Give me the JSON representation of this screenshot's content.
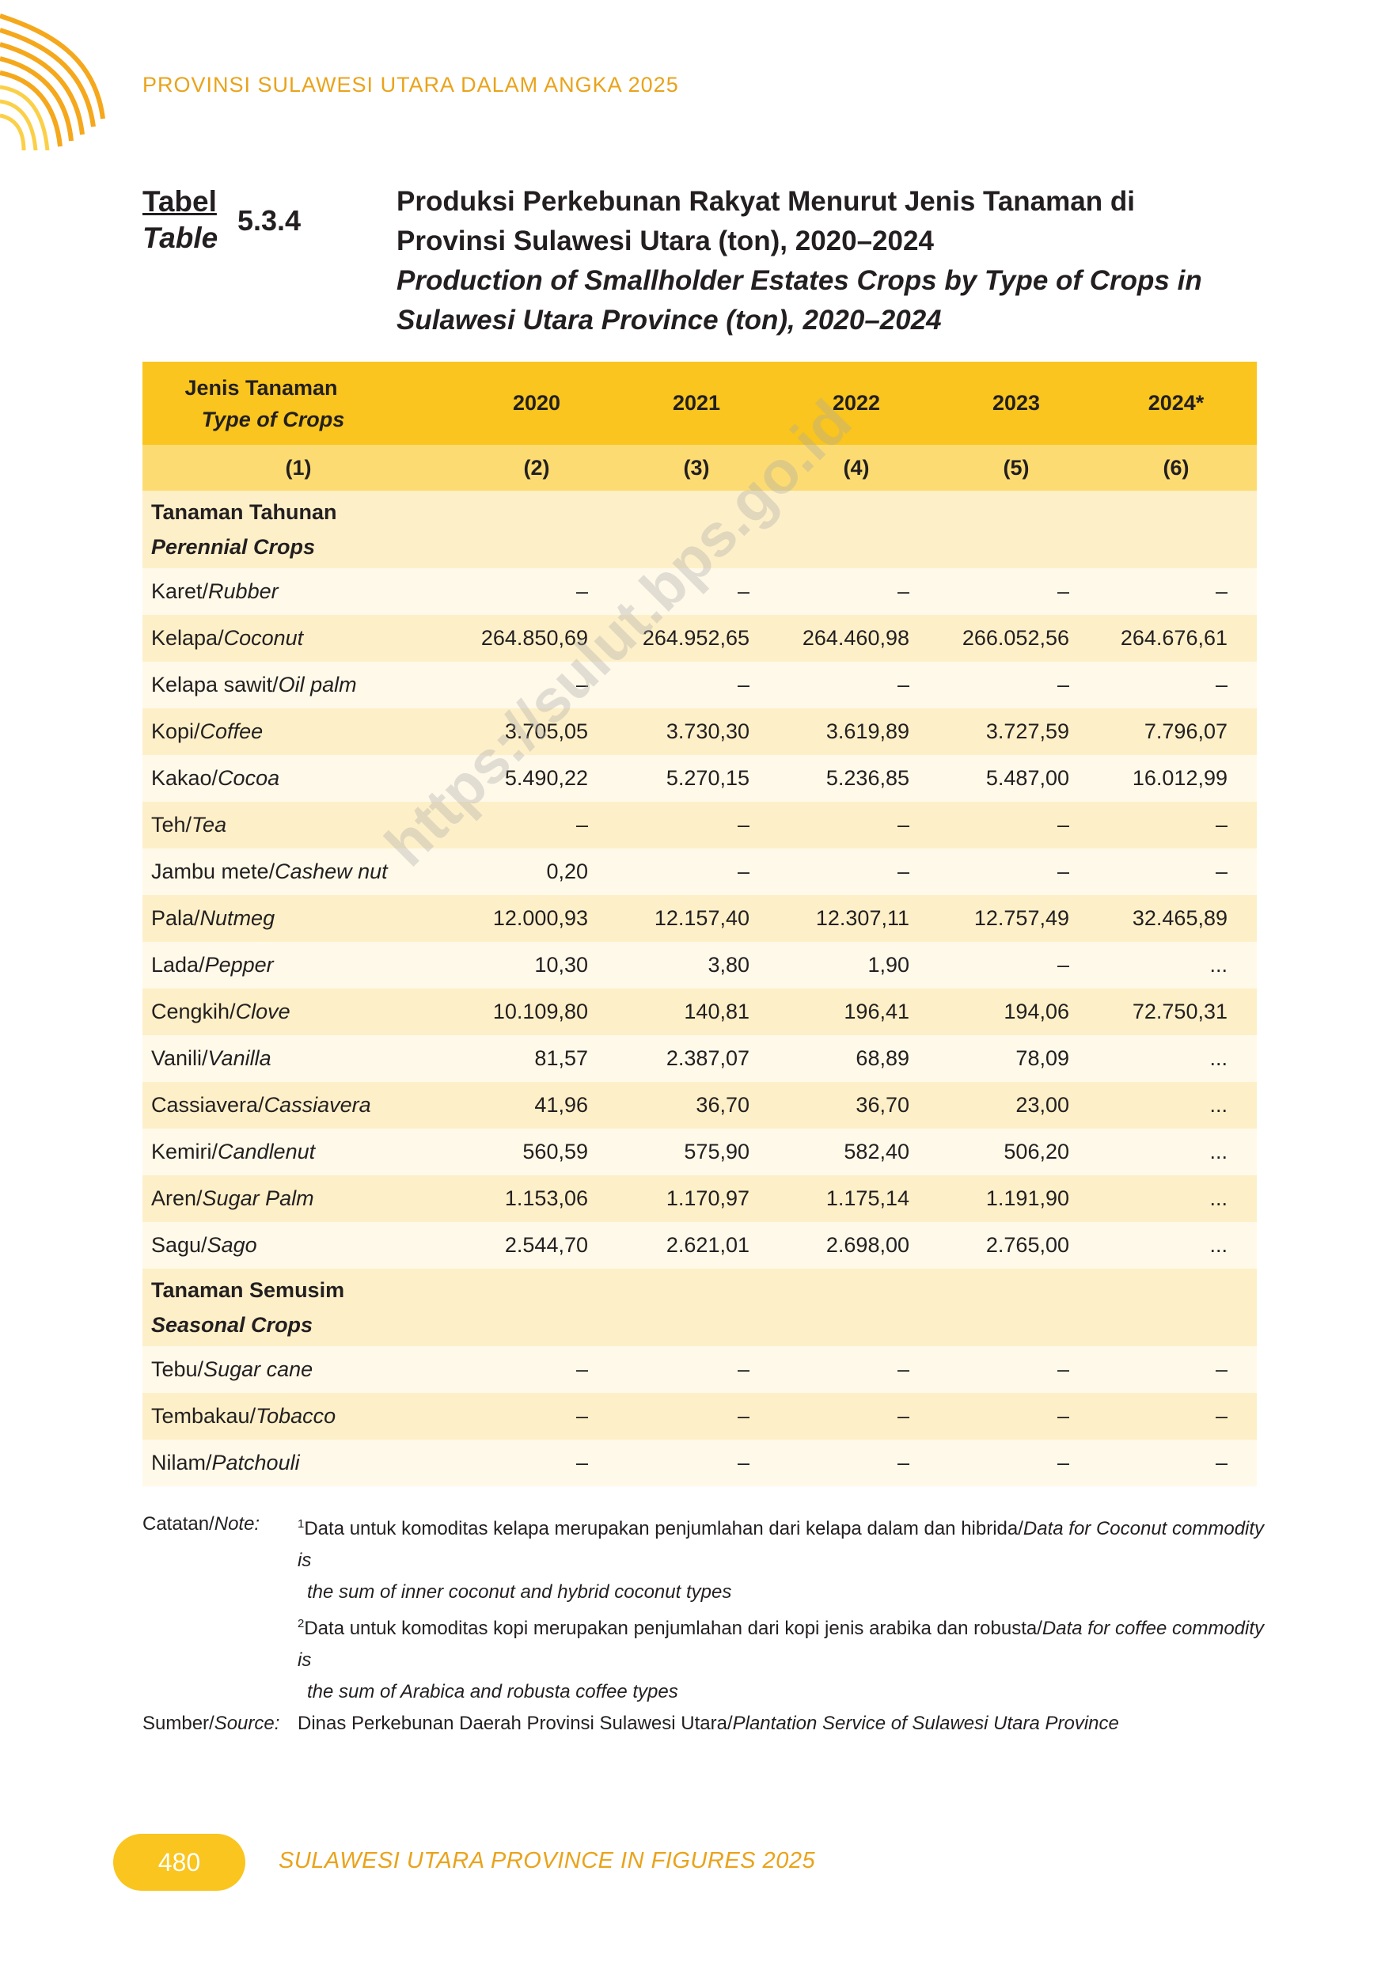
{
  "header": {
    "running_title": "PROVINSI SULAWESI UTARA DALAM ANGKA 2025",
    "watermark": "https://sulut.bps.go.id"
  },
  "table_label": {
    "id_word": "Tabel",
    "en_word": "Table",
    "number": "5.3.4"
  },
  "title": {
    "id": [
      "Produksi Perkebunan Rakyat Menurut Jenis Tanaman di",
      "Provinsi Sulawesi Utara (ton), 2020–2024"
    ],
    "en": [
      "Production of Smallholder Estates Crops by Type of Crops in",
      "Sulawesi Utara Province (ton), 2020–2024"
    ]
  },
  "table": {
    "first_column": {
      "id": "Jenis Tanaman",
      "en": "Type of Crops"
    },
    "years": [
      "2020",
      "2021",
      "2022",
      "2023",
      "2024*"
    ],
    "column_numbers": [
      "(1)",
      "(2)",
      "(3)",
      "(4)",
      "(5)",
      "(6)"
    ],
    "sections": [
      {
        "id": "Tanaman Tahunan",
        "en": "Perennial Crops",
        "rows": [
          {
            "id": "Karet/",
            "en": "Rubber",
            "values": [
              "–",
              "–",
              "–",
              "–",
              "–"
            ]
          },
          {
            "id": "Kelapa/",
            "en": "Coconut",
            "values": [
              "264.850,69",
              "264.952,65",
              "264.460,98",
              "266.052,56",
              "264.676,61"
            ]
          },
          {
            "id": "Kelapa sawit/",
            "en": "Oil palm",
            "values": [
              "–",
              "–",
              "–",
              "–",
              "–"
            ]
          },
          {
            "id": "Kopi/",
            "en": "Coffee",
            "values": [
              "3.705,05",
              "3.730,30",
              "3.619,89",
              "3.727,59",
              "7.796,07"
            ]
          },
          {
            "id": "Kakao/",
            "en": "Cocoa",
            "values": [
              "5.490,22",
              "5.270,15",
              "5.236,85",
              "5.487,00",
              "16.012,99"
            ]
          },
          {
            "id": "Teh/",
            "en": "Tea",
            "values": [
              "–",
              "–",
              "–",
              "–",
              "–"
            ]
          },
          {
            "id": "Jambu mete/",
            "en": "Cashew nut",
            "values": [
              "0,20",
              "–",
              "–",
              "–",
              "–"
            ]
          },
          {
            "id": "Pala/",
            "en": "Nutmeg",
            "values": [
              "12.000,93",
              "12.157,40",
              "12.307,11",
              "12.757,49",
              "32.465,89"
            ]
          },
          {
            "id": "Lada/",
            "en": "Pepper",
            "values": [
              "10,30",
              "3,80",
              "1,90",
              "–",
              "..."
            ]
          },
          {
            "id": "Cengkih/",
            "en": "Clove",
            "values": [
              "10.109,80",
              "140,81",
              "196,41",
              "194,06",
              "72.750,31"
            ]
          },
          {
            "id": "Vanili/",
            "en": "Vanilla",
            "values": [
              "81,57",
              "2.387,07",
              "68,89",
              "78,09",
              "..."
            ]
          },
          {
            "id": "Cassiavera/",
            "en": "Cassiavera",
            "values": [
              "41,96",
              "36,70",
              "36,70",
              "23,00",
              "..."
            ]
          },
          {
            "id": "Kemiri/",
            "en": "Candlenut",
            "values": [
              "560,59",
              "575,90",
              "582,40",
              "506,20",
              "..."
            ]
          },
          {
            "id": "Aren/",
            "en": "Sugar Palm",
            "values": [
              "1.153,06",
              "1.170,97",
              "1.175,14",
              "1.191,90",
              "..."
            ]
          },
          {
            "id": "Sagu/",
            "en": "Sago",
            "values": [
              "2.544,70",
              "2.621,01",
              "2.698,00",
              "2.765,00",
              "..."
            ]
          }
        ]
      },
      {
        "id": "Tanaman Semusim",
        "en": "Seasonal Crops",
        "rows": [
          {
            "id": "Tebu/",
            "en": "Sugar cane",
            "values": [
              "–",
              "–",
              "–",
              "–",
              "–"
            ]
          },
          {
            "id": "Tembakau/",
            "en": "Tobacco",
            "values": [
              "–",
              "–",
              "–",
              "–",
              "–"
            ]
          },
          {
            "id": "Nilam/",
            "en": "Patchouli",
            "values": [
              "–",
              "–",
              "–",
              "–",
              "–"
            ]
          }
        ]
      }
    ]
  },
  "notes": {
    "note_label": {
      "id": "Catatan/",
      "en": "Note:"
    },
    "items": [
      {
        "sup": "1",
        "id": "Data untuk komoditas kelapa merupakan penjumlahan dari kelapa dalam dan hibrida/",
        "en": "Data for Coconut commodity is",
        "en_cont": "the sum of inner coconut and hybrid coconut types"
      },
      {
        "sup": "2",
        "id": "Data untuk komoditas kopi merupakan penjumlahan dari kopi jenis arabika dan robusta/",
        "en": "Data for coffee commodity is",
        "en_cont": "the sum of Arabica and robusta coffee types"
      }
    ],
    "source_label": {
      "id": "Sumber/",
      "en": "Source:"
    },
    "source": {
      "id": "Dinas Perkebunan Daerah Provinsi Sulawesi Utara/",
      "en": "Plantation Service of Sulawesi Utara Province"
    }
  },
  "footer": {
    "page_number": "480",
    "text": "SULAWESI UTARA PROVINCE IN FIGURES 2025"
  }
}
